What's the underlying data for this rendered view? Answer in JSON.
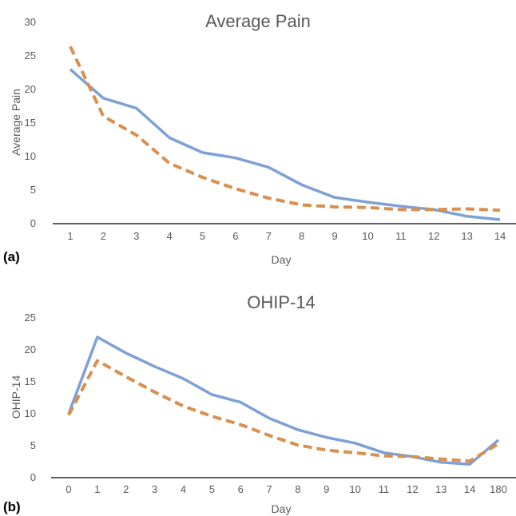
{
  "chart_data": [
    {
      "type": "line",
      "panel_label": "(a)",
      "title": "Average Pain",
      "xlabel": "Day",
      "ylabel": "Average Pain",
      "categories": [
        "1",
        "2",
        "3",
        "4",
        "5",
        "6",
        "7",
        "8",
        "9",
        "10",
        "11",
        "12",
        "13",
        "14"
      ],
      "ylim": [
        0,
        30
      ],
      "yticks": [
        "0",
        "5",
        "10",
        "15",
        "20",
        "25",
        "30"
      ],
      "grid": false,
      "legend": "none",
      "series": [
        {
          "style": "solid",
          "color": "#7da0d6",
          "values": [
            23.0,
            18.7,
            17.2,
            12.8,
            10.6,
            9.8,
            8.4,
            5.8,
            3.9,
            3.2,
            2.6,
            2.1,
            1.1,
            0.6
          ]
        },
        {
          "style": "dashed",
          "color": "#d98f4f",
          "values": [
            26.4,
            16.0,
            13.2,
            9.0,
            6.9,
            5.2,
            3.8,
            2.8,
            2.5,
            2.4,
            2.1,
            2.1,
            2.2,
            2.0
          ]
        }
      ]
    },
    {
      "type": "line",
      "panel_label": "(b)",
      "title": "OHIP-14",
      "xlabel": "Day",
      "ylabel": "OHIP-14",
      "categories": [
        "0",
        "1",
        "2",
        "3",
        "4",
        "5",
        "6",
        "7",
        "8",
        "9",
        "10",
        "11",
        "12",
        "13",
        "14",
        "180"
      ],
      "ylim": [
        0,
        25
      ],
      "yticks": [
        "0",
        "5",
        "10",
        "15",
        "20",
        "25"
      ],
      "grid": false,
      "legend": "none",
      "series": [
        {
          "style": "solid",
          "color": "#7da0d6",
          "values": [
            10.0,
            22.0,
            19.5,
            17.4,
            15.5,
            13.0,
            11.8,
            9.3,
            7.5,
            6.3,
            5.4,
            3.9,
            3.3,
            2.4,
            2.1,
            5.9
          ]
        },
        {
          "style": "dashed",
          "color": "#d98f4f",
          "values": [
            9.8,
            18.3,
            15.8,
            13.4,
            11.2,
            9.6,
            8.3,
            6.6,
            5.1,
            4.3,
            3.9,
            3.4,
            3.3,
            2.9,
            2.6,
            5.3
          ]
        }
      ]
    }
  ]
}
